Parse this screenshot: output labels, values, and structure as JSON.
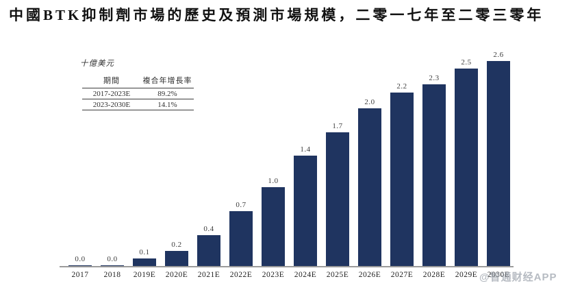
{
  "title": "中國BTK抑制劑市場的歷史及預測市場規模，二零一七年至二零三零年",
  "unit_label": "十億美元",
  "cagr_table": {
    "headers": [
      "期間",
      "複合年增長率"
    ],
    "rows": [
      [
        "2017-2023E",
        "89.2%"
      ],
      [
        "2023-2030E",
        "14.1%"
      ]
    ]
  },
  "watermark": "@智通财经APP",
  "colors": {
    "bar": "#1f3460",
    "axis": "#9b9b9b",
    "watermark": "#9ea4ad",
    "text": "#111111"
  },
  "chart_data": {
    "type": "bar",
    "title": "中國BTK抑制劑市場的歷史及預測市場規模，二零一七年至二零三零年",
    "ylabel": "十億美元",
    "xlabel": "",
    "categories": [
      "2017",
      "2018",
      "2019E",
      "2020E",
      "2021E",
      "2022E",
      "2023E",
      "2024E",
      "2025E",
      "2026E",
      "2027E",
      "2028E",
      "2029E",
      "2030E"
    ],
    "values": [
      0.0,
      0.0,
      0.1,
      0.2,
      0.4,
      0.7,
      1.0,
      1.4,
      1.7,
      2.0,
      2.2,
      2.3,
      2.5,
      2.6
    ],
    "bar_labels": [
      "0.0",
      "0.0",
      "0.1",
      "0.2",
      "0.4",
      "0.7",
      "1.0",
      "1.4",
      "1.7",
      "2.0",
      "2.2",
      "2.3",
      "2.5",
      "2.6"
    ],
    "ylim": [
      0,
      2.8
    ],
    "grid": false,
    "legend": null,
    "annotations": [
      {
        "period": "2017-2023E",
        "cagr": "89.2%"
      },
      {
        "period": "2023-2030E",
        "cagr": "14.1%"
      }
    ]
  }
}
